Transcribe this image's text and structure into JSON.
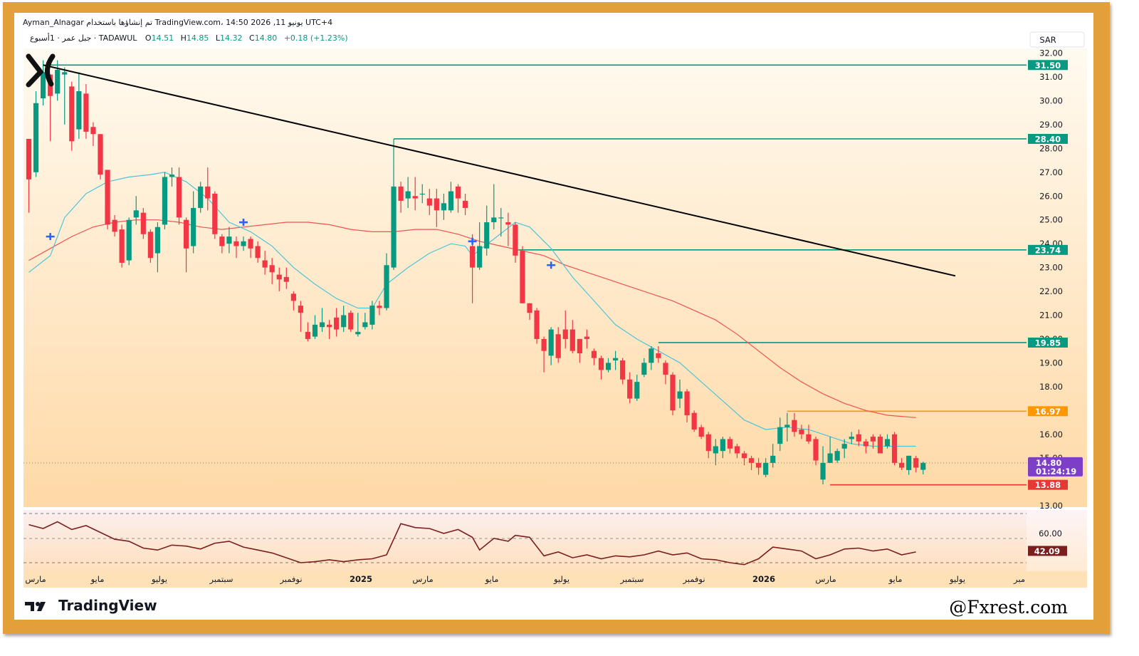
{
  "header": {
    "line1": "Ayman_Alnagar تم إنشاؤها باستخدام TradingView.com، 14:50 2026 ,11 يونيو UTC+4",
    "symbol_text": "جبل عمر · 1أسبوع · TADAWUL",
    "ohlc": [
      {
        "label": "O",
        "value": "14.51"
      },
      {
        "label": "H",
        "value": "14.85"
      },
      {
        "label": "L",
        "value": "14.32"
      },
      {
        "label": "C",
        "value": "14.80"
      }
    ],
    "change": "+0.18 (+1.23%)"
  },
  "currency_label": "SAR",
  "branding": {
    "tradingview": "TradingView",
    "watermark": "@Fxrest.com"
  },
  "colors": {
    "up": "#089981",
    "down": "#f23645",
    "level": "#089981",
    "orange": "#ff9800",
    "support": "#e53935",
    "ma_fast": "#4fc3d9",
    "ma_slow": "#ef5350",
    "trendline": "#000000",
    "rsi": "#7b1e1e",
    "current": "#7e3fc7"
  },
  "chart_data": {
    "type": "candlestick",
    "title": "",
    "ylim": [
      12.8,
      32.6
    ],
    "y_ticks": [
      "32.00",
      "31.00",
      "30.00",
      "29.00",
      "28.00",
      "27.00",
      "26.00",
      "25.00",
      "24.00",
      "23.00",
      "22.00",
      "21.00",
      "20.00",
      "19.00",
      "18.00",
      "17.00",
      "16.00",
      "15.00",
      "13.00"
    ],
    "x_labels": [
      "مارس",
      "مايو",
      "يوليو",
      "سبتمبر",
      "نوفمبر",
      "2025",
      "مارس",
      "مايو",
      "يوليو",
      "سبتمبر",
      "نوفمبر",
      "2026",
      "مارس",
      "مايو",
      "يوليو",
      "مبر"
    ],
    "candles": [
      [
        28.4,
        26.7,
        28.4,
        25.3
      ],
      [
        27.0,
        29.9,
        30.4,
        26.8
      ],
      [
        30.1,
        31.2,
        31.7,
        29.8
      ],
      [
        31.1,
        30.2,
        31.1,
        28.3
      ],
      [
        30.3,
        31.3,
        31.7,
        30.0
      ],
      [
        31.1,
        31.2,
        31.4,
        29.0
      ],
      [
        30.6,
        28.3,
        30.8,
        27.9
      ],
      [
        28.8,
        30.4,
        31.2,
        28.4
      ],
      [
        30.3,
        28.7,
        30.7,
        28.4
      ],
      [
        28.9,
        28.6,
        29.1,
        28.1
      ],
      [
        28.6,
        26.9,
        28.6,
        26.7
      ],
      [
        27.1,
        24.8,
        27.1,
        24.6
      ],
      [
        25.0,
        24.5,
        25.2,
        24.3
      ],
      [
        24.6,
        23.2,
        24.8,
        23.0
      ],
      [
        23.3,
        25.0,
        25.1,
        23.1
      ],
      [
        25.1,
        25.4,
        26.0,
        24.8
      ],
      [
        25.3,
        24.4,
        25.5,
        24.2
      ],
      [
        24.5,
        23.4,
        24.6,
        23.2
      ],
      [
        23.6,
        24.7,
        24.9,
        22.8
      ],
      [
        24.8,
        26.8,
        27.0,
        24.6
      ],
      [
        26.8,
        26.9,
        27.2,
        26.4
      ],
      [
        26.8,
        25.1,
        27.2,
        24.8
      ],
      [
        25.0,
        23.8,
        25.1,
        22.8
      ],
      [
        23.9,
        25.5,
        26.2,
        23.6
      ],
      [
        25.5,
        26.4,
        26.6,
        25.3
      ],
      [
        26.4,
        25.9,
        27.2,
        25.4
      ],
      [
        26.1,
        24.4,
        26.2,
        24.2
      ],
      [
        24.3,
        23.9,
        24.4,
        23.6
      ],
      [
        24.0,
        24.3,
        24.7,
        23.6
      ],
      [
        24.1,
        23.9,
        24.3,
        23.4
      ],
      [
        23.9,
        24.1,
        24.3,
        23.7
      ],
      [
        24.2,
        23.8,
        24.3,
        23.4
      ],
      [
        23.9,
        23.4,
        24.1,
        23.2
      ],
      [
        23.3,
        23.0,
        23.7,
        22.7
      ],
      [
        23.1,
        22.8,
        23.4,
        22.3
      ],
      [
        22.7,
        22.5,
        23.0,
        22.0
      ],
      [
        22.6,
        22.4,
        23.0,
        22.1
      ],
      [
        21.9,
        21.6,
        22.0,
        21.2
      ],
      [
        21.4,
        21.1,
        21.6,
        20.3
      ],
      [
        20.3,
        20.0,
        20.7,
        19.9
      ],
      [
        20.1,
        20.6,
        21.0,
        20.0
      ],
      [
        20.5,
        20.7,
        21.3,
        20.3
      ],
      [
        20.6,
        20.5,
        20.8,
        20.0
      ],
      [
        20.9,
        20.4,
        21.3,
        20.1
      ],
      [
        20.5,
        21.0,
        21.4,
        20.3
      ],
      [
        21.1,
        20.4,
        21.2,
        20.3
      ],
      [
        20.2,
        20.3,
        21.1,
        20.1
      ],
      [
        20.5,
        20.7,
        21.1,
        20.4
      ],
      [
        20.6,
        21.4,
        21.6,
        20.4
      ],
      [
        21.4,
        21.3,
        21.6,
        21.0
      ],
      [
        21.3,
        23.1,
        23.6,
        21.2
      ],
      [
        23.0,
        26.4,
        28.4,
        22.9
      ],
      [
        26.4,
        25.8,
        26.6,
        25.3
      ],
      [
        25.9,
        26.2,
        26.8,
        25.5
      ],
      [
        26.0,
        25.9,
        26.8,
        25.4
      ],
      [
        26.1,
        26.1,
        26.5,
        25.7
      ],
      [
        25.9,
        25.6,
        26.3,
        25.2
      ],
      [
        25.9,
        25.4,
        26.3,
        24.7
      ],
      [
        25.4,
        25.7,
        26.1,
        25.0
      ],
      [
        25.4,
        26.2,
        26.6,
        25.3
      ],
      [
        26.4,
        25.9,
        26.5,
        25.3
      ],
      [
        25.8,
        25.5,
        26.1,
        25.2
      ],
      [
        23.9,
        23.0,
        24.4,
        21.5
      ],
      [
        23.0,
        23.9,
        24.9,
        22.9
      ],
      [
        23.8,
        24.9,
        25.6,
        23.5
      ],
      [
        24.9,
        25.1,
        26.5,
        24.6
      ],
      [
        25.1,
        25.1,
        25.5,
        24.3
      ],
      [
        24.9,
        24.8,
        25.3,
        23.9
      ],
      [
        24.8,
        23.5,
        24.9,
        23.2
      ],
      [
        23.7,
        21.5,
        23.9,
        21.5
      ],
      [
        21.5,
        21.1,
        21.5,
        20.8
      ],
      [
        21.2,
        20.0,
        21.3,
        19.8
      ],
      [
        20.0,
        19.5,
        20.1,
        18.6
      ],
      [
        19.3,
        20.4,
        20.5,
        18.9
      ],
      [
        20.2,
        19.2,
        20.5,
        19.0
      ],
      [
        20.4,
        20.0,
        21.2,
        19.6
      ],
      [
        20.4,
        19.5,
        20.8,
        19.4
      ],
      [
        20.0,
        19.4,
        20.0,
        19.0
      ],
      [
        20.1,
        20.0,
        20.4,
        19.6
      ],
      [
        19.5,
        19.2,
        19.6,
        18.9
      ],
      [
        19.2,
        18.7,
        19.3,
        18.3
      ],
      [
        18.7,
        19.0,
        19.2,
        18.6
      ],
      [
        19.1,
        19.2,
        19.5,
        18.7
      ],
      [
        19.1,
        18.3,
        19.2,
        18.1
      ],
      [
        18.3,
        17.5,
        18.6,
        17.3
      ],
      [
        17.5,
        18.2,
        18.5,
        17.4
      ],
      [
        18.5,
        19.0,
        19.2,
        18.4
      ],
      [
        19.0,
        19.6,
        19.7,
        18.7
      ],
      [
        19.4,
        19.2,
        19.7,
        19.0
      ],
      [
        19.0,
        18.5,
        19.1,
        18.1
      ],
      [
        18.5,
        17.0,
        18.6,
        16.8
      ],
      [
        17.5,
        17.8,
        18.3,
        17.1
      ],
      [
        17.8,
        16.8,
        17.9,
        16.5
      ],
      [
        16.9,
        16.2,
        17.0,
        16.1
      ],
      [
        16.3,
        15.9,
        16.4,
        15.8
      ],
      [
        16.0,
        15.3,
        16.1,
        15.0
      ],
      [
        15.2,
        15.5,
        15.8,
        14.7
      ],
      [
        15.3,
        15.8,
        15.9,
        15.0
      ],
      [
        15.8,
        15.4,
        15.9,
        15.2
      ],
      [
        15.5,
        15.2,
        15.6,
        15.0
      ],
      [
        15.2,
        15.0,
        15.3,
        14.7
      ],
      [
        15.0,
        14.8,
        15.1,
        14.5
      ],
      [
        14.8,
        14.6,
        15.0,
        14.3
      ],
      [
        14.3,
        14.8,
        15.0,
        14.2
      ],
      [
        14.8,
        15.1,
        15.6,
        14.6
      ],
      [
        15.6,
        16.3,
        16.7,
        15.3
      ],
      [
        16.3,
        16.4,
        16.9,
        15.7
      ],
      [
        16.6,
        16.1,
        16.9,
        15.9
      ],
      [
        16.2,
        16.0,
        16.4,
        15.8
      ],
      [
        16.0,
        15.7,
        16.4,
        15.6
      ],
      [
        15.8,
        14.9,
        15.9,
        14.7
      ],
      [
        14.1,
        14.8,
        15.5,
        13.9
      ],
      [
        14.8,
        15.2,
        15.9,
        14.8
      ],
      [
        14.9,
        15.3,
        15.4,
        14.8
      ],
      [
        15.4,
        15.6,
        15.8,
        15.0
      ],
      [
        15.8,
        15.9,
        16.1,
        15.6
      ],
      [
        16.0,
        15.7,
        16.2,
        15.5
      ],
      [
        15.7,
        15.5,
        15.8,
        15.2
      ],
      [
        15.9,
        15.7,
        16.0,
        15.4
      ],
      [
        15.9,
        15.2,
        16.0,
        15.2
      ],
      [
        15.5,
        15.8,
        16.0,
        15.4
      ],
      [
        16.0,
        14.8,
        16.1,
        14.7
      ],
      [
        14.8,
        14.6,
        15.0,
        14.5
      ],
      [
        14.5,
        15.1,
        15.1,
        14.3
      ],
      [
        15.0,
        14.6,
        15.1,
        14.4
      ],
      [
        14.51,
        14.8,
        14.85,
        14.32
      ]
    ],
    "ma_fast": [
      [
        0,
        22.8
      ],
      [
        3,
        23.5
      ],
      [
        5,
        25.1
      ],
      [
        8,
        26.1
      ],
      [
        11,
        26.6
      ],
      [
        14,
        26.8
      ],
      [
        17,
        26.9
      ],
      [
        19,
        27.0
      ],
      [
        22,
        26.6
      ],
      [
        25,
        25.9
      ],
      [
        28,
        24.9
      ],
      [
        31,
        24.5
      ],
      [
        34,
        23.9
      ],
      [
        37,
        23.0
      ],
      [
        40,
        22.3
      ],
      [
        43,
        21.7
      ],
      [
        46,
        21.3
      ],
      [
        48,
        21.3
      ],
      [
        50,
        22.3
      ],
      [
        53,
        23.0
      ],
      [
        56,
        23.6
      ],
      [
        59,
        24.0
      ],
      [
        61,
        23.9
      ],
      [
        62,
        23.5
      ],
      [
        65,
        24.2
      ],
      [
        68,
        24.9
      ],
      [
        70,
        24.7
      ],
      [
        73,
        23.8
      ],
      [
        76,
        22.6
      ],
      [
        79,
        21.6
      ],
      [
        82,
        20.6
      ],
      [
        85,
        20.0
      ],
      [
        88,
        19.5
      ],
      [
        91,
        19.0
      ],
      [
        94,
        18.2
      ],
      [
        97,
        17.4
      ],
      [
        100,
        16.6
      ],
      [
        103,
        16.2
      ],
      [
        106,
        16.3
      ],
      [
        109,
        16.2
      ],
      [
        112,
        15.9
      ],
      [
        115,
        15.6
      ],
      [
        118,
        15.5
      ],
      [
        121,
        15.5
      ],
      [
        124,
        15.5
      ]
    ],
    "ma_slow": [
      [
        0,
        23.3
      ],
      [
        3,
        23.8
      ],
      [
        6,
        24.3
      ],
      [
        9,
        24.7
      ],
      [
        12,
        24.9
      ],
      [
        15,
        25.0
      ],
      [
        18,
        25.0
      ],
      [
        21,
        24.9
      ],
      [
        24,
        24.7
      ],
      [
        27,
        24.6
      ],
      [
        30,
        24.7
      ],
      [
        33,
        24.8
      ],
      [
        36,
        24.9
      ],
      [
        39,
        24.9
      ],
      [
        42,
        24.8
      ],
      [
        45,
        24.6
      ],
      [
        48,
        24.5
      ],
      [
        51,
        24.5
      ],
      [
        54,
        24.6
      ],
      [
        57,
        24.6
      ],
      [
        60,
        24.4
      ],
      [
        63,
        24.1
      ],
      [
        66,
        23.9
      ],
      [
        69,
        23.7
      ],
      [
        72,
        23.5
      ],
      [
        75,
        23.1
      ],
      [
        78,
        22.8
      ],
      [
        81,
        22.5
      ],
      [
        84,
        22.2
      ],
      [
        87,
        21.9
      ],
      [
        90,
        21.6
      ],
      [
        93,
        21.2
      ],
      [
        96,
        20.8
      ],
      [
        99,
        20.2
      ],
      [
        102,
        19.5
      ],
      [
        105,
        18.8
      ],
      [
        108,
        18.2
      ],
      [
        111,
        17.7
      ],
      [
        114,
        17.3
      ],
      [
        117,
        17.0
      ],
      [
        120,
        16.8
      ],
      [
        124,
        16.7
      ]
    ],
    "trendline": {
      "from": [
        2,
        31.5
      ],
      "to": [
        129.5,
        22.65
      ]
    },
    "levels": [
      {
        "value": "31.50",
        "from": 3,
        "color": "#089981"
      },
      {
        "value": "28.40",
        "from": 51,
        "color": "#089981"
      },
      {
        "value": "23.74",
        "from": 68,
        "color": "#089981"
      },
      {
        "value": "19.85",
        "from": 88,
        "color": "#089981"
      },
      {
        "value": "16.97",
        "from": 106,
        "color": "#ff9800"
      },
      {
        "value": "13.88",
        "from": 112,
        "color": "#e53935"
      }
    ],
    "last_price": {
      "value": "14.80",
      "countdown": "01:24:19"
    },
    "signals": [
      [
        3,
        24.3
      ],
      [
        30,
        24.9
      ],
      [
        62,
        24.1
      ],
      [
        73,
        23.1
      ]
    ],
    "rsi": {
      "last": "42.09",
      "ticks": [
        "60.00"
      ],
      "range": [
        25,
        75
      ],
      "values": [
        [
          0,
          69
        ],
        [
          2,
          65
        ],
        [
          4,
          72
        ],
        [
          6,
          64
        ],
        [
          8,
          68
        ],
        [
          10,
          61
        ],
        [
          12,
          54
        ],
        [
          14,
          52
        ],
        [
          16,
          45
        ],
        [
          18,
          43
        ],
        [
          20,
          48
        ],
        [
          22,
          47
        ],
        [
          24,
          44
        ],
        [
          26,
          50
        ],
        [
          28,
          52
        ],
        [
          30,
          46
        ],
        [
          32,
          43
        ],
        [
          34,
          40
        ],
        [
          36,
          35
        ],
        [
          38,
          30
        ],
        [
          40,
          31
        ],
        [
          42,
          33
        ],
        [
          44,
          31
        ],
        [
          46,
          33
        ],
        [
          48,
          34
        ],
        [
          50,
          38
        ],
        [
          52,
          70
        ],
        [
          54,
          66
        ],
        [
          56,
          65
        ],
        [
          58,
          60
        ],
        [
          60,
          64
        ],
        [
          62,
          56
        ],
        [
          63,
          43
        ],
        [
          65,
          55
        ],
        [
          67,
          52
        ],
        [
          68,
          58
        ],
        [
          70,
          56
        ],
        [
          72,
          37
        ],
        [
          74,
          41
        ],
        [
          76,
          35
        ],
        [
          78,
          38
        ],
        [
          80,
          34
        ],
        [
          82,
          37
        ],
        [
          84,
          36
        ],
        [
          86,
          38
        ],
        [
          88,
          42
        ],
        [
          90,
          38
        ],
        [
          92,
          40
        ],
        [
          94,
          34
        ],
        [
          96,
          33
        ],
        [
          98,
          30
        ],
        [
          100,
          28
        ],
        [
          102,
          34
        ],
        [
          104,
          46
        ],
        [
          106,
          44
        ],
        [
          108,
          42
        ],
        [
          110,
          34
        ],
        [
          112,
          38
        ],
        [
          114,
          44
        ],
        [
          116,
          45
        ],
        [
          118,
          42
        ],
        [
          120,
          44
        ],
        [
          122,
          38
        ],
        [
          124,
          41
        ]
      ]
    }
  }
}
